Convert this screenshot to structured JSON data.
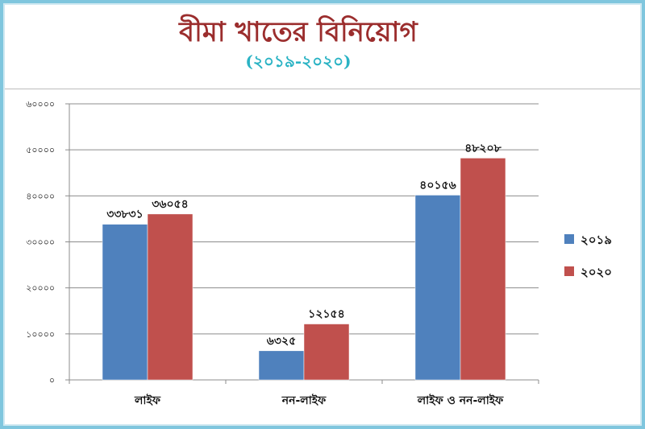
{
  "title": "বীমা খাতের বিনিয়োগ",
  "subtitle": "(২০১৯-২০২০)",
  "chart_data": {
    "type": "bar",
    "categories": [
      "লাইফ",
      "নন-লাইফ",
      "লাইফ ও নন-লাইফ"
    ],
    "series": [
      {
        "name": "২০১৯",
        "values": [
          33831,
          6325,
          40156
        ],
        "labels": [
          "৩৩৮৩১",
          "৬৩২৫",
          "৪০১৫৬"
        ],
        "color": "#4f81bd"
      },
      {
        "name": "২০২০",
        "values": [
          36054,
          12154,
          48208
        ],
        "labels": [
          "৩৬০৫৪",
          "১২১৫৪",
          "৪৮২০৮"
        ],
        "color": "#c0504d"
      }
    ],
    "ylim": [
      0,
      60000
    ],
    "yticks": [
      0,
      10000,
      20000,
      30000,
      40000,
      50000,
      60000
    ],
    "ytick_labels": [
      "০",
      "১০০০০",
      "২০০০০",
      "৩০০০০",
      "৪০০০০",
      "৫০০০০",
      "৬০০০০"
    ],
    "grid": true,
    "legend": "right"
  }
}
